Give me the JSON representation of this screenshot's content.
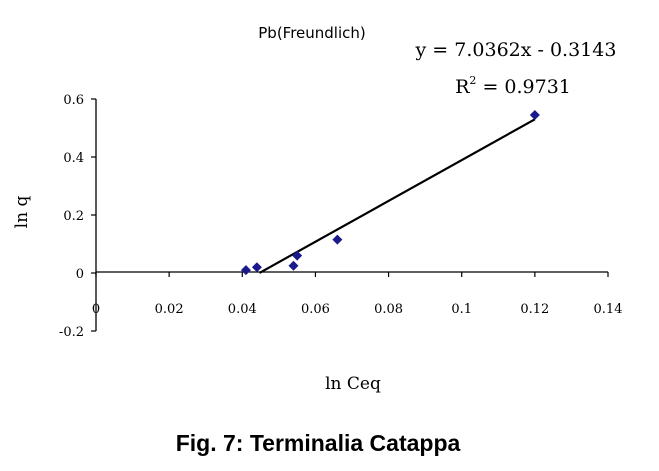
{
  "chart_data": {
    "type": "scatter",
    "title": "Pb(Freundlich)",
    "xlabel": "ln Ceq",
    "ylabel": "ln q",
    "xlim": [
      0,
      0.14
    ],
    "ylim": [
      -0.2,
      0.6
    ],
    "x_ticks": [
      0,
      0.02,
      0.04,
      0.06,
      0.08,
      0.1,
      0.12,
      0.14
    ],
    "x_tick_labels": [
      "0",
      "0.02",
      "0.04",
      "0.06",
      "0.08",
      "0.1",
      "0.12",
      "0.14"
    ],
    "y_ticks": [
      -0.2,
      0,
      0.2,
      0.4,
      0.6
    ],
    "y_tick_labels": [
      "-0.2",
      "0",
      "0.2",
      "0.4",
      "0.6"
    ],
    "grid": false,
    "series": [
      {
        "color": "#1a1a8c",
        "marker": "diamond",
        "points": [
          {
            "x": 0.041,
            "y": 0.01
          },
          {
            "x": 0.044,
            "y": 0.02
          },
          {
            "x": 0.054,
            "y": 0.025
          },
          {
            "x": 0.055,
            "y": 0.06
          },
          {
            "x": 0.066,
            "y": 0.115
          },
          {
            "x": 0.12,
            "y": 0.545
          }
        ]
      }
    ],
    "trendline": {
      "slope": 7.0362,
      "intercept": -0.3143,
      "x_range": [
        0.0447,
        0.12
      ],
      "color": "#000000",
      "equation_text": "y = 7.0362x - 0.3143",
      "r2_prefix": "R",
      "r2_superscript": "2",
      "r2_value_text": " = 0.9731"
    }
  },
  "caption": "Fig. 7: Terminalia Catappa"
}
